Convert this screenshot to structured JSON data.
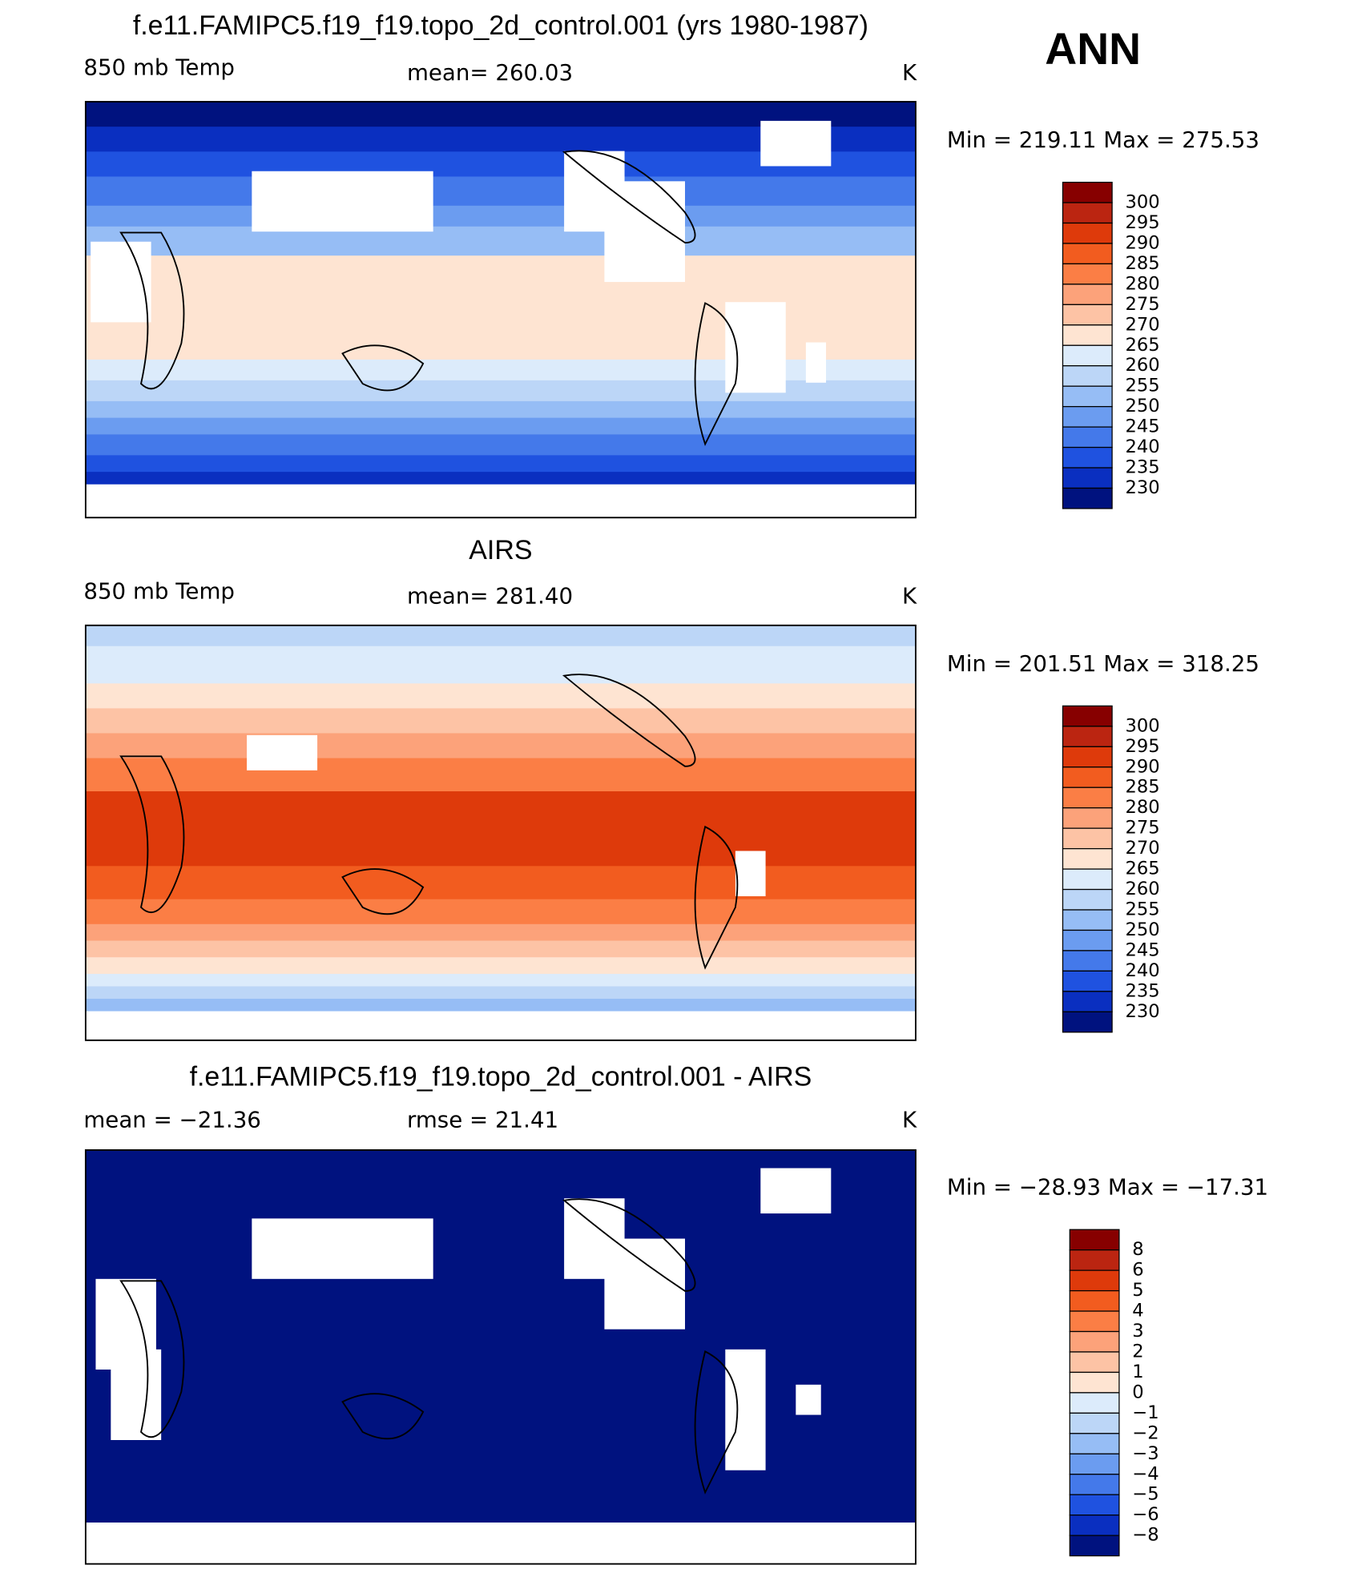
{
  "header": {
    "season": "ANN"
  },
  "colorbar_colors": [
    "#870000",
    "#bb2511",
    "#de3a0b",
    "#f25c1f",
    "#fb7e45",
    "#fca27a",
    "#fdc3a5",
    "#fee4d2",
    "#dcebfb",
    "#bcd6f7",
    "#96bdf5",
    "#6b9cf0",
    "#4479ea",
    "#1f52e0",
    "#0a2fc0",
    "#00127f"
  ],
  "panels": [
    {
      "title": "f.e11.FAMIPC5.f19_f19.topo_2d_control.001 (yrs 1980-1987)",
      "left": "850 mb Temp",
      "stat": "mean=  260.03",
      "units": "K",
      "range": "Min  =  219.11  Max  =  275.53",
      "colorbar_labels": [
        "300",
        "295",
        "290",
        "285",
        "280",
        "275",
        "270",
        "265",
        "260",
        "255",
        "250",
        "245",
        "240",
        "235",
        "230"
      ]
    },
    {
      "title": "AIRS",
      "left": "850 mb Temp",
      "stat": "mean=  281.40",
      "units": "K",
      "range": "Min  =  201.51  Max  =  318.25",
      "colorbar_labels": [
        "300",
        "295",
        "290",
        "285",
        "280",
        "275",
        "270",
        "265",
        "260",
        "255",
        "250",
        "245",
        "240",
        "235",
        "230"
      ]
    },
    {
      "title": "f.e11.FAMIPC5.f19_f19.topo_2d_control.001 - AIRS",
      "left": "mean  =  −21.36",
      "stat": "rmse  =    21.41",
      "units": "K",
      "range": "Min  =  −28.93  Max  =  −17.31",
      "colorbar_labels": [
        "8",
        "6",
        "5",
        "4",
        "3",
        "2",
        "1",
        "0",
        "−1",
        "−2",
        "−3",
        "−4",
        "−5",
        "−6",
        "−8"
      ]
    }
  ]
}
